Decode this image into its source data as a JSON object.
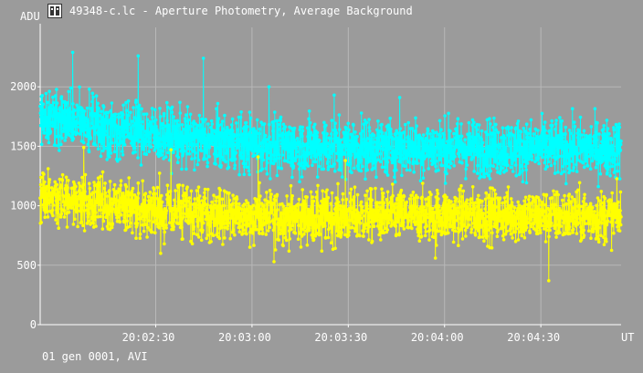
{
  "window": {
    "title": "49348-c.lc - Aperture Photometry, Average Background",
    "icon": "camera-film-icon"
  },
  "footer": {
    "text": "01 gen 0001, AVI"
  },
  "chart_data": {
    "type": "scatter",
    "ylabel": "ADU",
    "xlabel": "UT",
    "x_tick_labels": [
      "20:02:30",
      "20:03:00",
      "20:03:30",
      "20:04:00",
      "20:04:30"
    ],
    "x_tick_values": [
      "20:02:30",
      "20:03:00",
      "20:03:30",
      "20:04:00",
      "20:04:30"
    ],
    "xlim": [
      "20:01:54",
      "20:04:55"
    ],
    "ylim": [
      0,
      2500
    ],
    "y_tick_values": [
      0,
      500,
      1000,
      1500,
      2000
    ],
    "grid": true,
    "connected_points": true,
    "series": [
      {
        "color": "#00ffff",
        "n_points": 2200,
        "profile_x": [
          "20:01:54",
          "20:02:05",
          "20:02:20",
          "20:02:40",
          "20:03:10",
          "20:04:00",
          "20:04:55"
        ],
        "profile_mean": [
          1760,
          1700,
          1640,
          1560,
          1500,
          1490,
          1480
        ],
        "spread": 120,
        "extreme_max": [
          2290,
          2260,
          2240,
          2000,
          1930,
          1910
        ],
        "min_level": 1150
      },
      {
        "color": "#ffff00",
        "n_points": 2200,
        "profile_x": [
          "20:01:54",
          "20:02:05",
          "20:02:20",
          "20:02:40",
          "20:03:10",
          "20:04:00",
          "20:04:55"
        ],
        "profile_mean": [
          1080,
          1040,
          1000,
          930,
          900,
          920,
          910
        ],
        "spread": 110,
        "extreme_max": [
          1490,
          1470,
          1410,
          1380
        ],
        "extreme_min": [
          370,
          530,
          560,
          600,
          620
        ],
        "min_level": 370
      }
    ]
  }
}
